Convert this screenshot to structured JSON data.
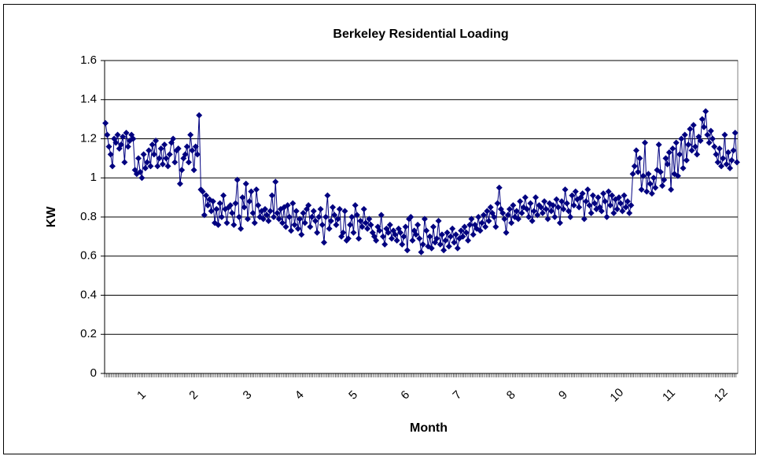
{
  "chart_data": {
    "type": "line",
    "title": "Berkeley Residential Loading",
    "xlabel": "Month",
    "ylabel": "KW",
    "categories": [
      null,
      null,
      null,
      null,
      null,
      null,
      null,
      null,
      null,
      null,
      null,
      null,
      null,
      null,
      null,
      null,
      null,
      null,
      null,
      null,
      null,
      "1",
      null,
      null,
      null,
      null,
      null,
      null,
      null,
      null,
      null,
      null,
      null,
      null,
      null,
      null,
      null,
      null,
      null,
      null,
      null,
      null,
      null,
      null,
      null,
      null,
      null,
      null,
      null,
      null,
      null,
      "2",
      null,
      null,
      null,
      null,
      null,
      null,
      null,
      null,
      null,
      null,
      null,
      null,
      null,
      null,
      null,
      null,
      null,
      null,
      null,
      null,
      null,
      null,
      null,
      null,
      null,
      null,
      null,
      null,
      null,
      null,
      "3",
      null,
      null,
      null,
      null,
      null,
      null,
      null,
      null,
      null,
      null,
      null,
      null,
      null,
      null,
      null,
      null,
      null,
      null,
      null,
      null,
      null,
      null,
      null,
      null,
      null,
      null,
      null,
      null,
      null,
      "4",
      null,
      null,
      null,
      null,
      null,
      null,
      null,
      null,
      null,
      null,
      null,
      null,
      null,
      null,
      null,
      null,
      null,
      null,
      null,
      null,
      null,
      null,
      null,
      null,
      null,
      null,
      null,
      null,
      null,
      null,
      "5",
      null,
      null,
      null,
      null,
      null,
      null,
      null,
      null,
      null,
      null,
      null,
      null,
      null,
      null,
      null,
      null,
      null,
      null,
      null,
      null,
      null,
      null,
      null,
      null,
      null,
      null,
      null,
      null,
      null,
      "6",
      null,
      null,
      null,
      null,
      null,
      null,
      null,
      null,
      null,
      null,
      null,
      null,
      null,
      null,
      null,
      null,
      null,
      null,
      null,
      null,
      null,
      null,
      null,
      null,
      null,
      null,
      null,
      null,
      null,
      "7",
      null,
      null,
      null,
      null,
      null,
      null,
      null,
      null,
      null,
      null,
      null,
      null,
      null,
      null,
      null,
      null,
      null,
      null,
      null,
      null,
      null,
      null,
      null,
      null,
      null,
      null,
      null,
      null,
      null,
      null,
      "8",
      null,
      null,
      null,
      null,
      null,
      null,
      null,
      null,
      null,
      null,
      null,
      null,
      null,
      null,
      null,
      null,
      null,
      null,
      null,
      null,
      null,
      null,
      null,
      null,
      null,
      null,
      null,
      null,
      null,
      "9",
      null,
      null,
      null,
      null,
      null,
      null,
      null,
      null,
      null,
      null,
      null,
      null,
      null,
      null,
      null,
      null,
      null,
      null,
      null,
      null,
      null,
      null,
      null,
      null,
      null,
      null,
      null,
      null,
      null,
      null,
      "10",
      null,
      null,
      null,
      null,
      null,
      null,
      null,
      null,
      null,
      null,
      null,
      null,
      null,
      null,
      null,
      null,
      null,
      null,
      null,
      null,
      null,
      null,
      null,
      null,
      null,
      null,
      null,
      null,
      null,
      "11",
      null,
      null,
      null,
      null,
      null,
      null,
      null,
      null,
      null,
      null,
      null,
      null,
      null,
      null,
      null,
      null,
      null,
      null,
      null,
      null,
      null,
      null,
      null,
      null,
      null,
      null,
      null,
      null,
      null,
      "12",
      null,
      null,
      null,
      null,
      null,
      null,
      null,
      null,
      null
    ],
    "series": [
      {
        "name": "KW",
        "color": "#000080",
        "values": [
          1.28,
          1.22,
          1.16,
          1.12,
          1.06,
          1.2,
          1.18,
          1.22,
          1.15,
          1.17,
          1.21,
          1.08,
          1.23,
          1.16,
          1.19,
          1.22,
          1.2,
          1.04,
          1.02,
          1.1,
          1.03,
          1.0,
          1.12,
          1.05,
          1.08,
          1.14,
          1.06,
          1.17,
          1.12,
          1.19,
          1.06,
          1.1,
          1.15,
          1.07,
          1.17,
          1.1,
          1.06,
          1.12,
          1.18,
          1.2,
          1.08,
          1.14,
          1.15,
          0.97,
          1.04,
          1.1,
          1.12,
          1.16,
          1.08,
          1.22,
          1.14,
          1.04,
          1.16,
          1.12,
          1.32,
          0.94,
          0.93,
          0.81,
          0.91,
          0.86,
          0.89,
          0.83,
          0.88,
          0.77,
          0.84,
          0.76,
          0.87,
          0.8,
          0.91,
          0.84,
          0.77,
          0.85,
          0.86,
          0.82,
          0.76,
          0.87,
          0.99,
          0.8,
          0.74,
          0.9,
          0.85,
          0.97,
          0.79,
          0.88,
          0.93,
          0.82,
          0.77,
          0.94,
          0.86,
          0.8,
          0.83,
          0.79,
          0.84,
          0.81,
          0.78,
          0.83,
          0.91,
          0.8,
          0.98,
          0.82,
          0.79,
          0.84,
          0.77,
          0.85,
          0.75,
          0.86,
          0.8,
          0.73,
          0.87,
          0.76,
          0.83,
          0.74,
          0.79,
          0.71,
          0.82,
          0.77,
          0.84,
          0.86,
          0.75,
          0.8,
          0.83,
          0.78,
          0.72,
          0.8,
          0.84,
          0.76,
          0.67,
          0.8,
          0.91,
          0.74,
          0.78,
          0.85,
          0.81,
          0.76,
          0.79,
          0.84,
          0.7,
          0.72,
          0.83,
          0.68,
          0.69,
          0.76,
          0.8,
          0.72,
          0.86,
          0.81,
          0.69,
          0.78,
          0.75,
          0.84,
          0.77,
          0.74,
          0.79,
          0.76,
          0.72,
          0.7,
          0.68,
          0.75,
          0.73,
          0.81,
          0.7,
          0.66,
          0.74,
          0.72,
          0.76,
          0.69,
          0.73,
          0.71,
          0.68,
          0.74,
          0.72,
          0.66,
          0.7,
          0.75,
          0.63,
          0.79,
          0.8,
          0.68,
          0.73,
          0.71,
          0.76,
          0.69,
          0.62,
          0.66,
          0.79,
          0.73,
          0.65,
          0.7,
          0.64,
          0.75,
          0.67,
          0.69,
          0.78,
          0.66,
          0.71,
          0.63,
          0.68,
          0.72,
          0.65,
          0.7,
          0.74,
          0.67,
          0.71,
          0.64,
          0.69,
          0.73,
          0.7,
          0.75,
          0.72,
          0.68,
          0.76,
          0.79,
          0.71,
          0.76,
          0.74,
          0.8,
          0.73,
          0.77,
          0.81,
          0.75,
          0.83,
          0.78,
          0.85,
          0.82,
          0.8,
          0.75,
          0.87,
          0.95,
          0.84,
          0.82,
          0.79,
          0.72,
          0.81,
          0.84,
          0.77,
          0.86,
          0.8,
          0.83,
          0.79,
          0.88,
          0.82,
          0.85,
          0.9,
          0.84,
          0.8,
          0.87,
          0.78,
          0.83,
          0.9,
          0.81,
          0.86,
          0.85,
          0.82,
          0.88,
          0.84,
          0.79,
          0.87,
          0.83,
          0.86,
          0.8,
          0.89,
          0.85,
          0.77,
          0.88,
          0.84,
          0.94,
          0.87,
          0.83,
          0.8,
          0.91,
          0.86,
          0.93,
          0.89,
          0.85,
          0.9,
          0.92,
          0.79,
          0.88,
          0.94,
          0.86,
          0.82,
          0.91,
          0.87,
          0.84,
          0.9,
          0.85,
          0.83,
          0.92,
          0.88,
          0.8,
          0.93,
          0.86,
          0.91,
          0.82,
          0.89,
          0.84,
          0.9,
          0.87,
          0.83,
          0.91,
          0.85,
          0.88,
          0.82,
          0.86,
          1.02,
          1.06,
          1.14,
          1.03,
          1.1,
          0.94,
          1.01,
          1.18,
          0.93,
          1.02,
          0.97,
          0.92,
          1.0,
          0.95,
          1.04,
          1.17,
          1.03,
          0.96,
          0.99,
          1.1,
          1.07,
          1.13,
          0.94,
          1.15,
          1.02,
          1.18,
          1.01,
          1.12,
          1.2,
          1.05,
          1.22,
          1.09,
          1.17,
          1.25,
          1.14,
          1.27,
          1.16,
          1.12,
          1.21,
          1.19,
          1.3,
          1.26,
          1.34,
          1.22,
          1.18,
          1.24,
          1.2,
          1.16,
          1.12,
          1.08,
          1.15,
          1.06,
          1.1,
          1.22,
          1.07,
          1.13,
          1.05,
          1.09,
          1.14,
          1.23,
          1.08
        ]
      }
    ],
    "ylim": [
      0,
      1.6
    ],
    "yticks": [
      0,
      0.2,
      0.4,
      0.6,
      0.8,
      1,
      1.2,
      1.4,
      1.6
    ],
    "grid": true
  }
}
